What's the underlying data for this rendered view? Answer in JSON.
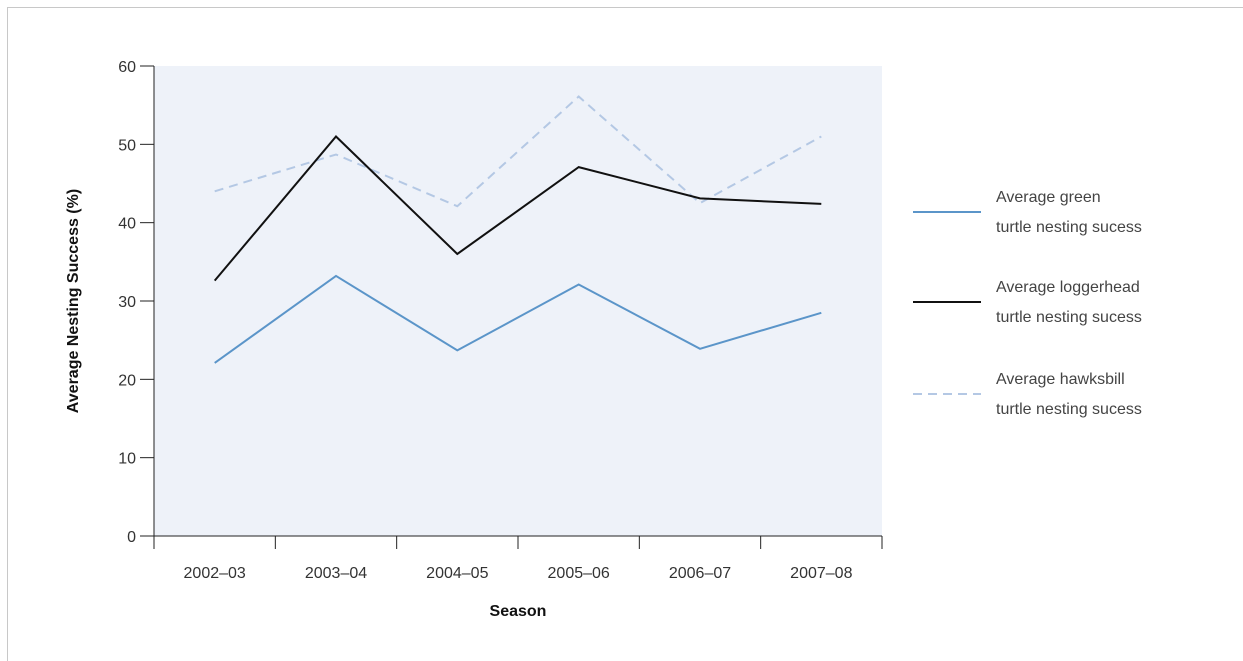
{
  "chart_data": {
    "type": "line",
    "title": "",
    "xlabel": "Season",
    "ylabel": "Average Nesting Success (%)",
    "categories": [
      "2002–03",
      "2003–04",
      "2004–05",
      "2005–06",
      "2006–07",
      "2007–08"
    ],
    "ylim": [
      0,
      60
    ],
    "yticks": [
      "0",
      "10",
      "20",
      "30",
      "40",
      "50",
      "60"
    ],
    "grid": false,
    "legend_position": "right",
    "plot_background": "#eef2f9",
    "series": [
      {
        "name_line1": "Average green",
        "name_line2": "turtle nesting sucess",
        "values": [
          22.1,
          33.2,
          23.7,
          32.1,
          23.9,
          28.5
        ],
        "color": "#5b95c9",
        "dash": "solid"
      },
      {
        "name_line1": "Average loggerhead",
        "name_line2": "turtle nesting sucess",
        "values": [
          32.6,
          51.0,
          36.0,
          47.1,
          43.1,
          42.4
        ],
        "color": "#111111",
        "dash": "solid"
      },
      {
        "name_line1": "Average hawksbill",
        "name_line2": "turtle nesting sucess",
        "values": [
          44.0,
          48.7,
          42.1,
          56.1,
          42.5,
          51.0
        ],
        "color": "#b4c8e4",
        "dash": "dashed"
      }
    ]
  }
}
